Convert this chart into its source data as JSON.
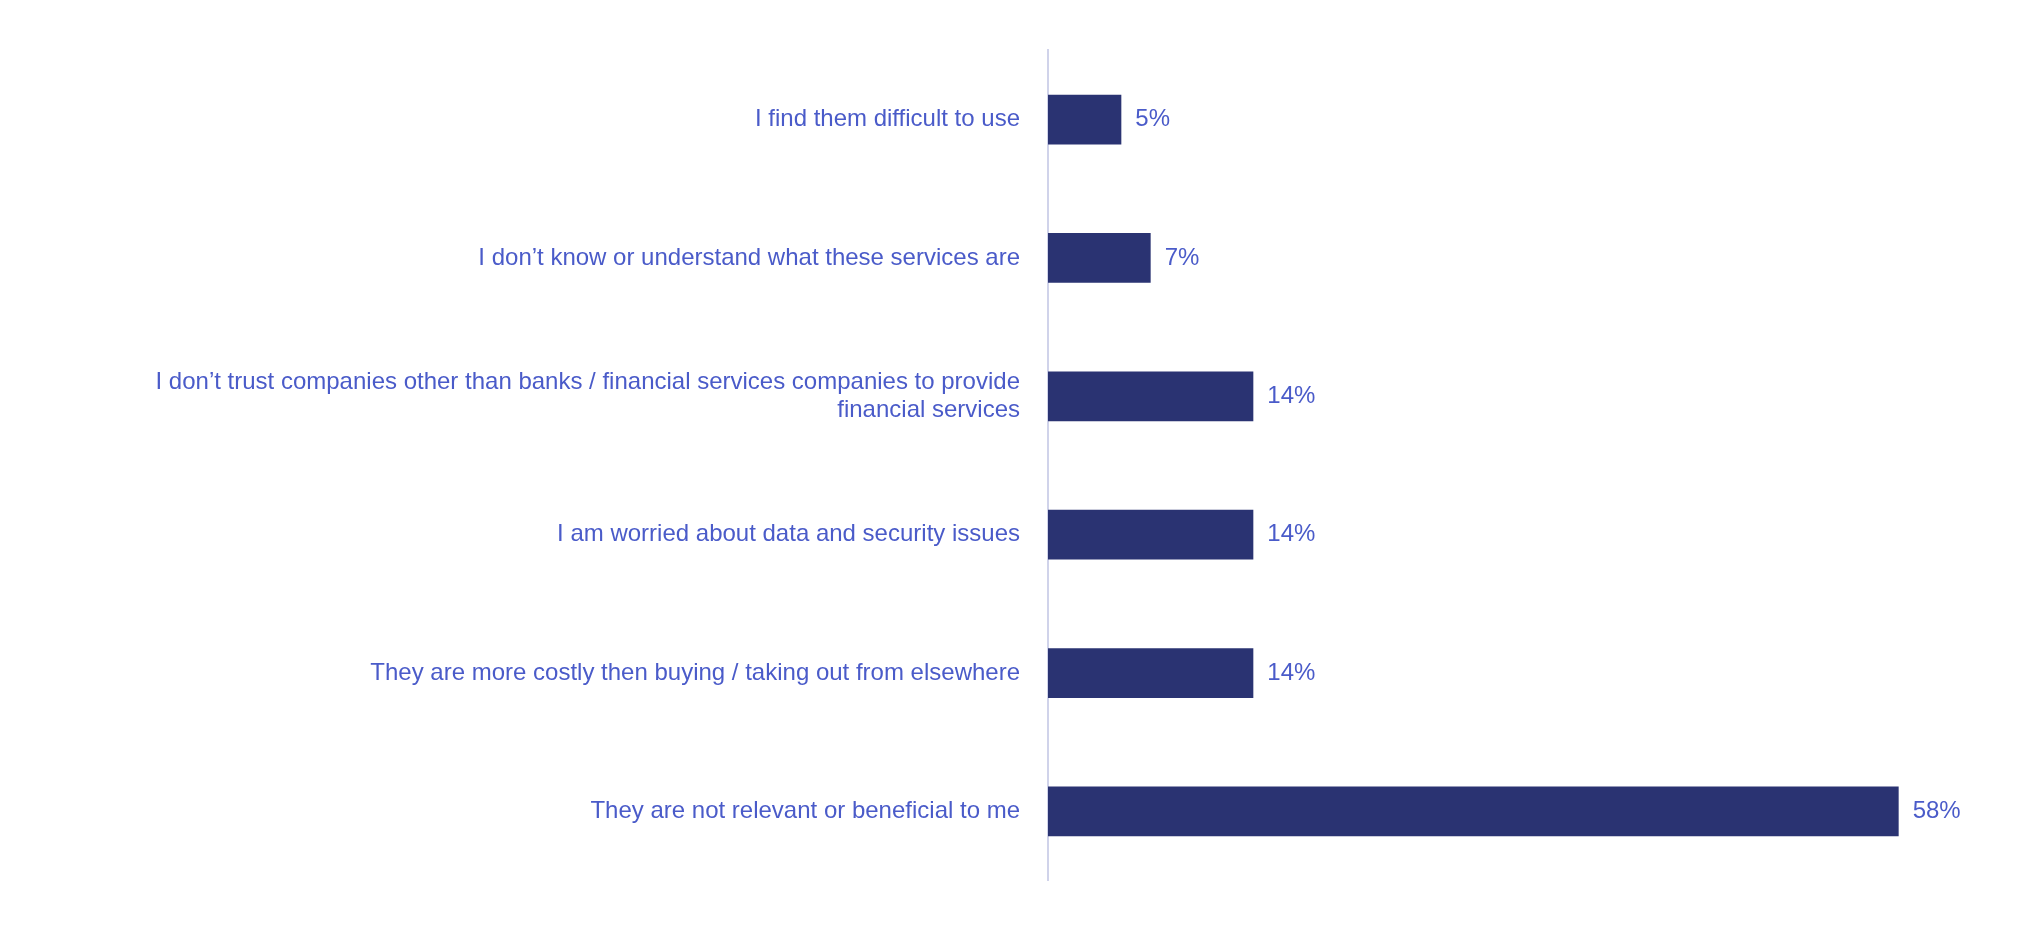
{
  "chart_data": {
    "type": "bar",
    "orientation": "horizontal",
    "categories": [
      "I find them difficult to use",
      "I don’t know or understand what these services are",
      "I don’t trust companies other than banks / financial services companies to provide financial services",
      "I am worried about data and security issues",
      "They are more costly then buying / taking out from elsewhere",
      "They are not relevant or beneficial to me"
    ],
    "values": [
      5,
      7,
      14,
      14,
      14,
      58
    ],
    "value_labels": [
      "5%",
      "7%",
      "14%",
      "14%",
      "14%",
      "58%"
    ],
    "color": "#2a3372",
    "legend": false,
    "grid": false
  }
}
